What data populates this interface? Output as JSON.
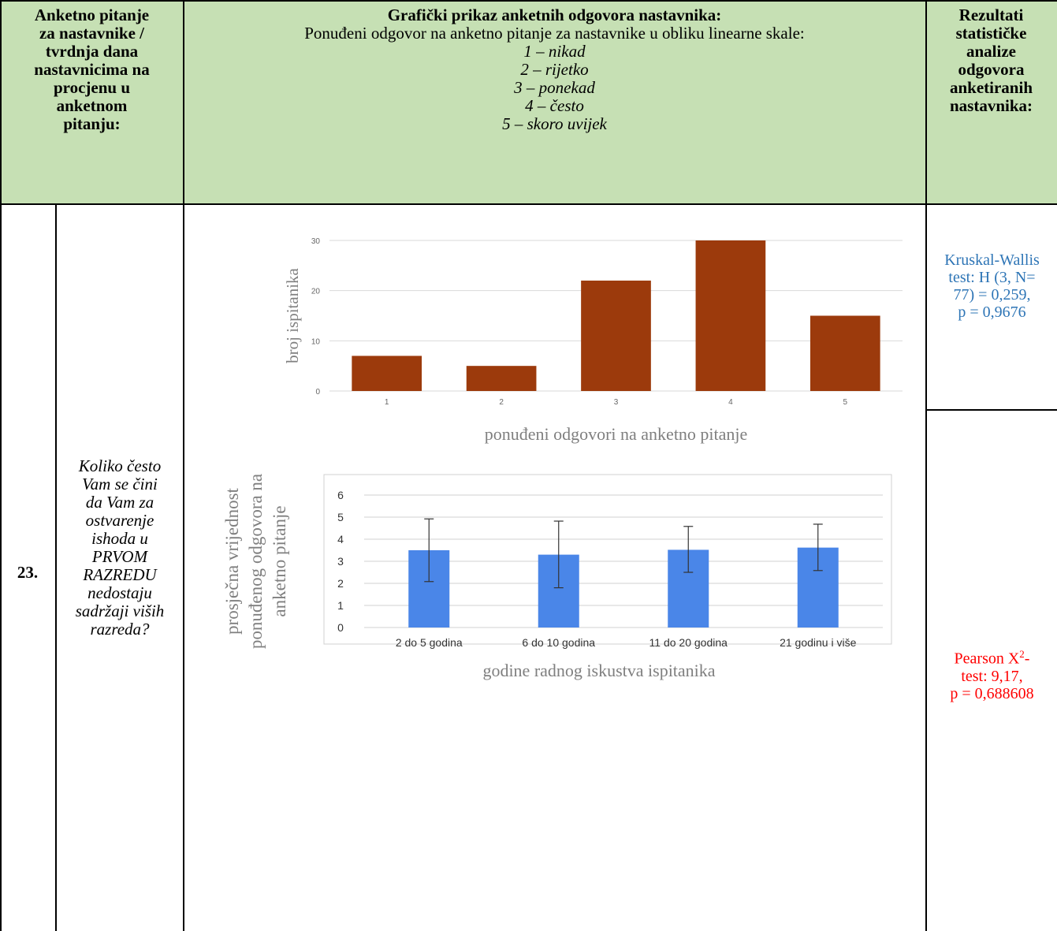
{
  "header": {
    "col1_lines": [
      "Anketno pitanje",
      "za nastavnike /",
      "tvrdnja dana",
      "nastavnicima na",
      "procjenu u",
      "anketnom",
      "pitanju:"
    ],
    "col2_title": "Grafički prikaz anketnih odgovora nastavnika:",
    "col2_subtitle": "Ponuđeni odgovor na anketno pitanje za nastavnike u obliku linearne skale:",
    "col2_scale": [
      "1 – nikad",
      "2 – rijetko",
      "3 – ponekad",
      "4 – često",
      "5 – skoro uvijek"
    ],
    "col3_lines": [
      "Rezultati",
      "statističke",
      "analize",
      "odgovora",
      "anketiranih",
      "nastavnika:"
    ]
  },
  "row": {
    "number": "23.",
    "question_lines": [
      "Koliko često",
      "Vam se čini",
      "da Vam za",
      "ostvarenje",
      "ishoda u",
      "PRVOM",
      "RAZREDU",
      "nedostaju",
      "sadržaji viših",
      "razreda?"
    ],
    "stat1_lines": [
      "Kruskal-Wallis",
      "test: H (3, N=",
      "77) = 0,259,",
      "p = 0,9676"
    ],
    "stat2_line1_pre": "Pearson X",
    "stat2_line1_sup": "2",
    "stat2_line1_post": "-",
    "stat2_lines": [
      "test: 9,17,",
      "p = 0,688608"
    ],
    "colors": {
      "header_bg": "#c6e0b4",
      "stat1": "#2e75b6",
      "stat2": "#ff0000"
    }
  },
  "chart_data": [
    {
      "type": "bar",
      "categories": [
        "1",
        "2",
        "3",
        "4",
        "5"
      ],
      "values": [
        7,
        5,
        22,
        30,
        15
      ],
      "ylabel": "broj ispitanika",
      "xlabel": "ponuđeni odgovori na anketno pitanje",
      "yticks": [
        "0",
        "10",
        "20",
        "30"
      ],
      "ylim": [
        0,
        30
      ],
      "color": "#9c3a0c",
      "grid": true
    },
    {
      "type": "bar",
      "categories": [
        "2 do 5 godina",
        "6 do 10 godina",
        "11 do 20 godina",
        "21 godinu i više"
      ],
      "values": [
        3.5,
        3.3,
        3.52,
        3.62
      ],
      "error_low": [
        2.08,
        1.8,
        2.5,
        2.58
      ],
      "error_high": [
        4.92,
        4.82,
        4.58,
        4.68
      ],
      "ylabel_lines": [
        "prosječna vrijednost",
        "ponuđenog odgovora na",
        "anketno pitanje"
      ],
      "xlabel": "godine radnog iskustva ispitanika",
      "yticks": [
        "0",
        "1",
        "2",
        "3",
        "4",
        "5",
        "6"
      ],
      "ylim": [
        0,
        6
      ],
      "color": "#4a86e8",
      "grid": true
    }
  ]
}
